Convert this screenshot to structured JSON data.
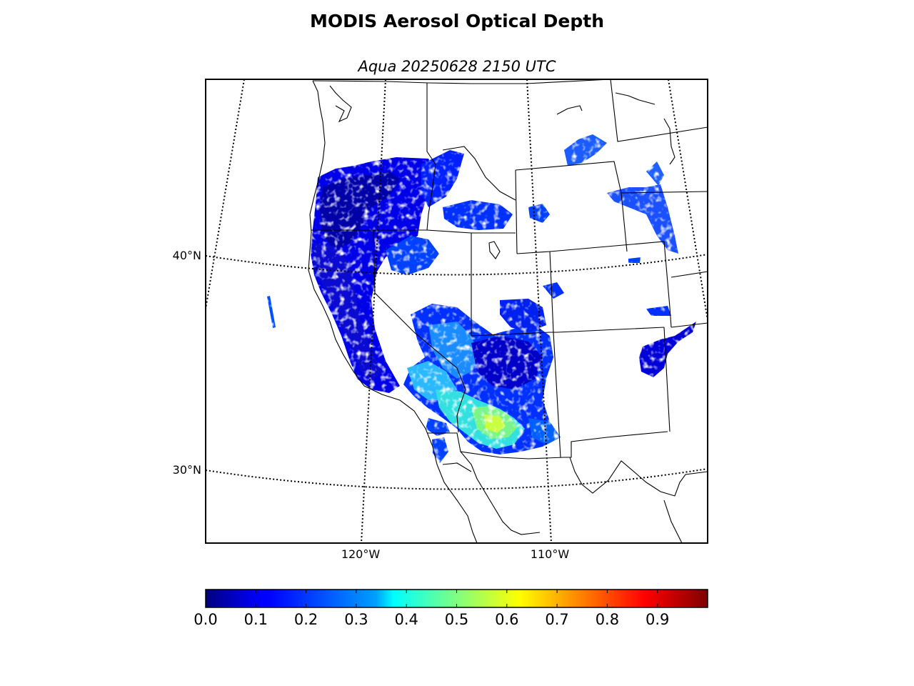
{
  "figure": {
    "title": "MODIS Aerosol Optical Depth",
    "subtitle": "Aqua 20250628 2150 UTC"
  },
  "map": {
    "projection": "lambert-conformal",
    "lat_labels": [
      "40°N",
      "30°N"
    ],
    "lon_labels": [
      "120°W",
      "110°W"
    ],
    "graticule_style": "dotted",
    "features": [
      "coastlines",
      "country borders",
      "US state borders"
    ]
  },
  "colorbar": {
    "colormap": "jet",
    "range": [
      0.0,
      1.0
    ],
    "tick_labels": [
      "0.0",
      "0.1",
      "0.2",
      "0.3",
      "0.4",
      "0.5",
      "0.6",
      "0.7",
      "0.8",
      "0.9"
    ]
  },
  "colors": {
    "jet_stops": [
      "#00007f",
      "#0000ff",
      "#007fff",
      "#00ffff",
      "#7fff7f",
      "#ffff00",
      "#ff7f00",
      "#ff0000",
      "#7f0000"
    ]
  }
}
